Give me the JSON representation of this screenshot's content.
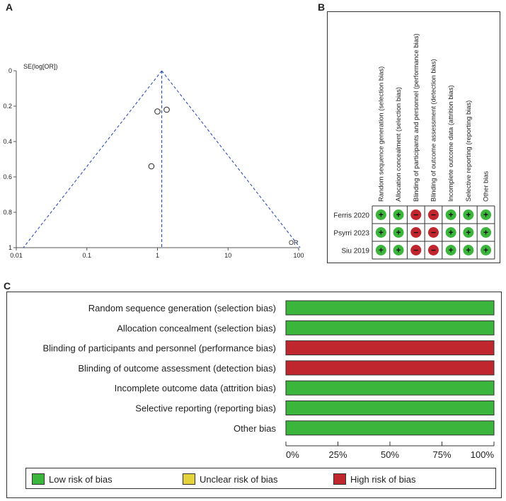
{
  "panels": {
    "a": "A",
    "b": "B",
    "c": "C"
  },
  "colors": {
    "low": "#3cb53c",
    "unclear": "#e3d23a",
    "high": "#c0262d",
    "funnel": "#2b4fb8"
  },
  "chart_data": [
    {
      "type": "scatter",
      "name": "funnel-plot",
      "ylabel": "SE(log[OR])",
      "xlabel": "OR",
      "xscale": "log",
      "xlim": [
        0.01,
        100
      ],
      "ylim": [
        1,
        0
      ],
      "xticks": [
        "0.01",
        "0.1",
        "1",
        "10",
        "100"
      ],
      "yticks": [
        "0",
        "0.2",
        "0.4",
        "0.6",
        "0.8",
        "1"
      ],
      "points": [
        {
          "or": 1.0,
          "se": 0.23
        },
        {
          "or": 1.35,
          "se": 0.22
        },
        {
          "or": 0.82,
          "se": 0.54
        }
      ],
      "pooled_or": 1.15
    },
    {
      "type": "table",
      "name": "risk-of-bias-summary",
      "domains": [
        "Random sequence generation (selection bias)",
        "Allocation concealment (selection bias)",
        "Blinding of participants and personnel (performance bias)",
        "Blinding of outcome assessment (detection bias)",
        "Incomplete outcome data (attrition bias)",
        "Selective reporting (reporting bias)",
        "Other bias"
      ],
      "studies": [
        {
          "name": "Ferris 2020",
          "ratings": [
            "low",
            "low",
            "high",
            "high",
            "low",
            "low",
            "low"
          ]
        },
        {
          "name": "Psyrri 2023",
          "ratings": [
            "low",
            "low",
            "high",
            "high",
            "low",
            "low",
            "low"
          ]
        },
        {
          "name": "Siu 2019",
          "ratings": [
            "low",
            "low",
            "high",
            "high",
            "low",
            "low",
            "low"
          ]
        }
      ],
      "symbols": {
        "low": "+",
        "high": "−"
      }
    },
    {
      "type": "bar",
      "name": "risk-of-bias-graph",
      "orientation": "horizontal",
      "stacked": true,
      "categories": [
        "Random sequence generation (selection bias)",
        "Allocation concealment (selection bias)",
        "Blinding of participants and personnel (performance bias)",
        "Blinding of outcome assessment (detection bias)",
        "Incomplete outcome data (attrition bias)",
        "Selective reporting (reporting bias)",
        "Other bias"
      ],
      "series": [
        {
          "name": "Low risk of bias",
          "key": "low",
          "values": [
            100,
            100,
            0,
            0,
            100,
            100,
            100
          ]
        },
        {
          "name": "Unclear risk of bias",
          "key": "unclear",
          "values": [
            0,
            0,
            0,
            0,
            0,
            0,
            0
          ]
        },
        {
          "name": "High risk of bias",
          "key": "high",
          "values": [
            0,
            0,
            100,
            100,
            0,
            0,
            0
          ]
        }
      ],
      "xticks": [
        "0%",
        "25%",
        "50%",
        "75%",
        "100%"
      ],
      "xlim": [
        0,
        100
      ]
    }
  ]
}
